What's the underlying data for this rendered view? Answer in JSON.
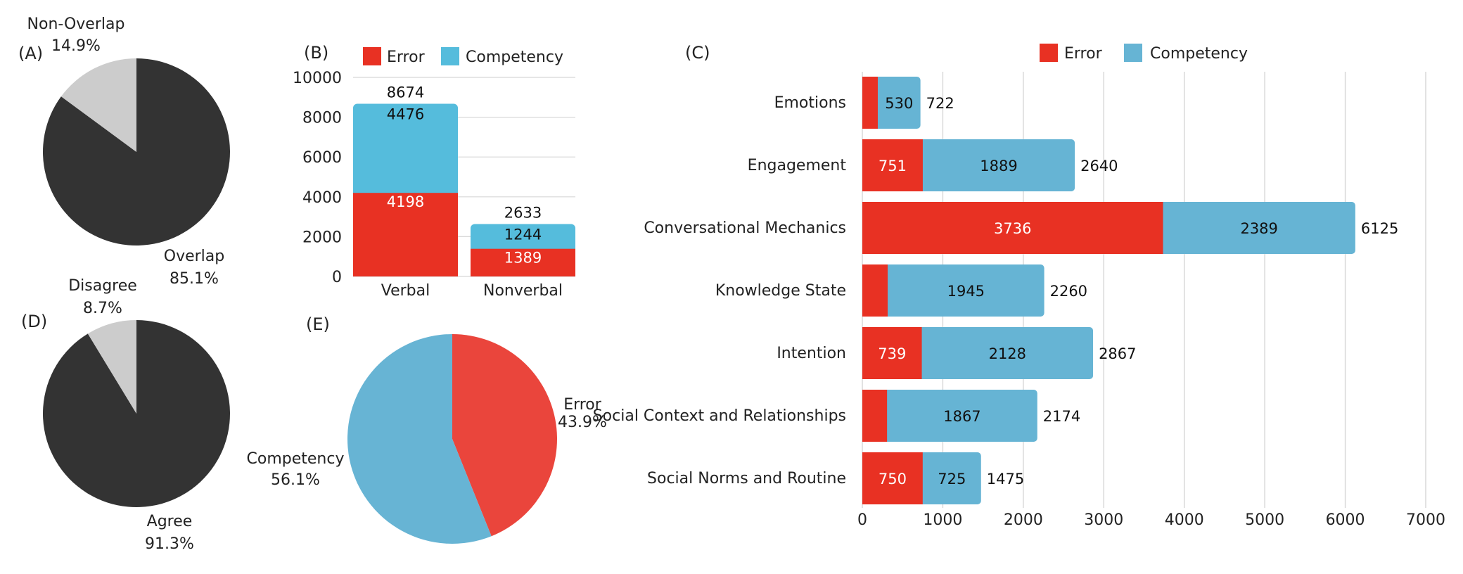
{
  "colors": {
    "dark": "#333333",
    "light_gray": "#cccccc",
    "error": "#e83123",
    "competency_b": "#55bcdc",
    "competency_c": "#66b4d4",
    "error_e": "#ea453c",
    "competency_e": "#67b4d4",
    "grid": "#d6d6d6"
  },
  "chart_data": [
    {
      "panel": "(A)",
      "type": "pie",
      "slices": [
        {
          "label": "Overlap",
          "pct_label": "85.1%",
          "value": 85.1,
          "color": "#333333"
        },
        {
          "label": "Non-Overlap",
          "pct_label": "14.9%",
          "value": 14.9,
          "color": "#cccccc"
        }
      ]
    },
    {
      "panel": "(B)",
      "type": "bar",
      "stacked": true,
      "categories": [
        "Verbal",
        "Nonverbal"
      ],
      "series": [
        {
          "name": "Error",
          "values": [
            4198,
            1389
          ],
          "color": "#e83123"
        },
        {
          "name": "Competency",
          "values": [
            4476,
            1244
          ],
          "color": "#55bcdc"
        }
      ],
      "totals": [
        8674,
        2633
      ],
      "ylim": [
        0,
        10000
      ],
      "yticks": [
        "0",
        "2000",
        "4000",
        "6000",
        "8000",
        "10000"
      ],
      "legend": "top"
    },
    {
      "panel": "(C)",
      "type": "bar",
      "orientation": "horizontal",
      "stacked": true,
      "categories": [
        "Emotions",
        "Engagement",
        "Conversational Mechanics",
        "Knowledge State",
        "Intention",
        "Social Context and Relationships",
        "Social Norms and Routine"
      ],
      "series": [
        {
          "name": "Error",
          "values": [
            192,
            751,
            3736,
            315,
            739,
            307,
            750
          ],
          "labels": [
            "",
            "751",
            "3736",
            "",
            "739",
            "",
            "750"
          ],
          "color": "#e83123"
        },
        {
          "name": "Competency",
          "values": [
            530,
            1889,
            2389,
            1945,
            2128,
            1867,
            725
          ],
          "labels": [
            "530",
            "1889",
            "2389",
            "1945",
            "2128",
            "1867",
            "725"
          ],
          "color": "#66b4d4"
        }
      ],
      "totals": [
        722,
        2640,
        6125,
        2260,
        2867,
        2174,
        1475
      ],
      "xlim": [
        0,
        7000
      ],
      "xticks": [
        "0",
        "1000",
        "2000",
        "3000",
        "4000",
        "5000",
        "6000",
        "7000"
      ],
      "grid": true,
      "legend": "top"
    },
    {
      "panel": "(D)",
      "type": "pie",
      "slices": [
        {
          "label": "Agree",
          "pct_label": "91.3%",
          "value": 91.3,
          "color": "#333333"
        },
        {
          "label": "Disagree",
          "pct_label": "8.7%",
          "value": 8.7,
          "color": "#cccccc"
        }
      ]
    },
    {
      "panel": "(E)",
      "type": "pie",
      "slices": [
        {
          "label": "Error",
          "pct_label": "43.9%",
          "value": 43.9,
          "color": "#ea453c"
        },
        {
          "label": "Competency",
          "pct_label": "56.1%",
          "value": 56.1,
          "color": "#67b4d4"
        }
      ]
    }
  ]
}
